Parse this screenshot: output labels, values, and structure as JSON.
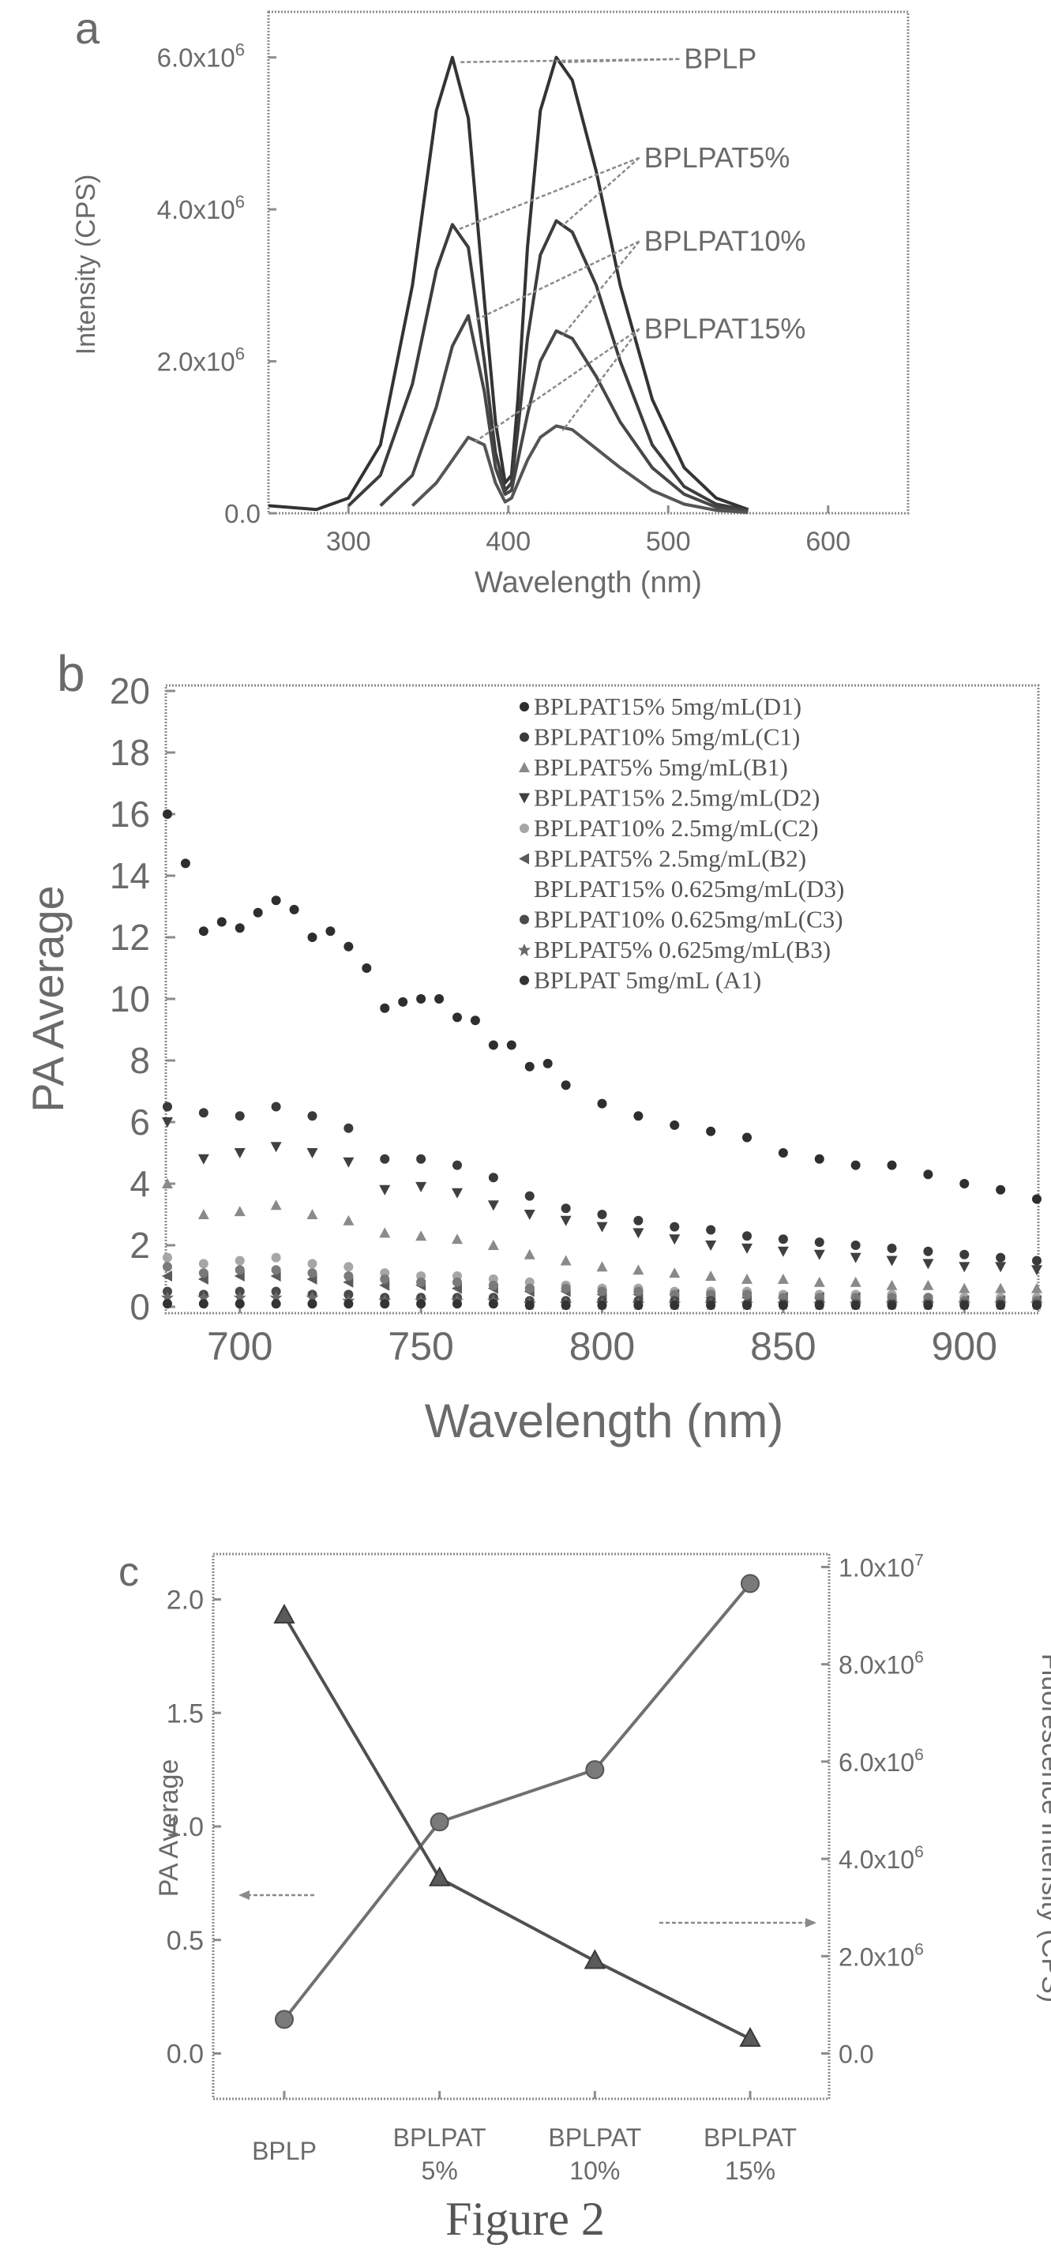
{
  "chart_data": [
    {
      "panel": "a",
      "type": "line",
      "xlabel": "Wavelength (nm)",
      "ylabel": "Intensity (CPS)",
      "xlim": [
        250,
        650
      ],
      "ylim": [
        0,
        6600000
      ],
      "x_ticks": [
        {
          "v": 300,
          "t": "300"
        },
        {
          "v": 400,
          "t": "400"
        },
        {
          "v": 500,
          "t": "500"
        },
        {
          "v": 600,
          "t": "600"
        }
      ],
      "y_ticks": [
        {
          "v": 0,
          "t": "0.0"
        },
        {
          "v": 2000000,
          "t": "2.0x10"
        },
        {
          "v": 4000000,
          "t": "4.0x10"
        },
        {
          "v": 6000000,
          "t": "6.0x10"
        }
      ],
      "y_exp": "6",
      "annotations": [
        {
          "text": "BPLP",
          "name": "label-bplp",
          "tx": 500,
          "ty": 6000000
        },
        {
          "text": "BPLPAT5%",
          "name": "label-bplpat5",
          "tx": 475,
          "ty": 4700000
        },
        {
          "text": "BPLPAT10%",
          "name": "label-bplpat10",
          "tx": 475,
          "ty": 3600000
        },
        {
          "text": "BPLPAT15%",
          "name": "label-bplpat15",
          "tx": 475,
          "ty": 2450000
        }
      ],
      "series": [
        {
          "name": "BPLP",
          "x": [
            250,
            280,
            300,
            320,
            340,
            355,
            365,
            375,
            385,
            392,
            398,
            402,
            406,
            412,
            420,
            430,
            440,
            455,
            470,
            490,
            510,
            530,
            550
          ],
          "values": [
            100000,
            50000,
            200000,
            900000,
            3000000,
            5300000,
            6000000,
            5200000,
            2800000,
            1200000,
            400000,
            500000,
            1500000,
            3500000,
            5300000,
            6000000,
            5700000,
            4500000,
            3000000,
            1500000,
            600000,
            200000,
            50000
          ]
        },
        {
          "name": "BPLPAT5%",
          "x": [
            300,
            320,
            340,
            355,
            365,
            375,
            385,
            392,
            398,
            402,
            406,
            412,
            420,
            430,
            440,
            455,
            470,
            490,
            510,
            530,
            550
          ],
          "values": [
            100000,
            500000,
            1700000,
            3200000,
            3800000,
            3500000,
            2000000,
            800000,
            300000,
            400000,
            1100000,
            2300000,
            3400000,
            3850000,
            3700000,
            3000000,
            2000000,
            900000,
            350000,
            120000,
            40000
          ]
        },
        {
          "name": "BPLPAT10%",
          "x": [
            320,
            340,
            355,
            365,
            375,
            385,
            392,
            398,
            402,
            406,
            412,
            420,
            430,
            440,
            455,
            470,
            490,
            510,
            530,
            550
          ],
          "values": [
            100000,
            500000,
            1400000,
            2200000,
            2600000,
            1600000,
            600000,
            250000,
            300000,
            700000,
            1300000,
            2000000,
            2400000,
            2300000,
            1800000,
            1200000,
            600000,
            250000,
            80000,
            30000
          ]
        },
        {
          "name": "BPLPAT15%",
          "x": [
            340,
            355,
            365,
            375,
            385,
            392,
            398,
            402,
            406,
            412,
            420,
            430,
            440,
            455,
            470,
            490,
            510,
            530,
            550
          ],
          "values": [
            100000,
            400000,
            700000,
            1000000,
            900000,
            400000,
            150000,
            200000,
            400000,
            700000,
            1000000,
            1150000,
            1100000,
            850000,
            600000,
            300000,
            120000,
            40000,
            10000
          ]
        }
      ]
    },
    {
      "panel": "b",
      "type": "scatter",
      "xlabel": "Wavelength (nm)",
      "ylabel": "PA Average",
      "xlim": [
        680,
        920
      ],
      "ylim": [
        0,
        20
      ],
      "x_ticks": [
        {
          "v": 700,
          "t": "700"
        },
        {
          "v": 750,
          "t": "750"
        },
        {
          "v": 800,
          "t": "800"
        },
        {
          "v": 850,
          "t": "850"
        },
        {
          "v": 900,
          "t": "900"
        }
      ],
      "y_ticks": [
        {
          "v": 0,
          "t": "0"
        },
        {
          "v": 2,
          "t": "2"
        },
        {
          "v": 4,
          "t": "4"
        },
        {
          "v": 6,
          "t": "6"
        },
        {
          "v": 8,
          "t": "8"
        },
        {
          "v": 10,
          "t": "10"
        },
        {
          "v": 12,
          "t": "12"
        },
        {
          "v": 14,
          "t": "14"
        },
        {
          "v": 16,
          "t": "16"
        },
        {
          "v": 18,
          "t": "18"
        },
        {
          "v": 20,
          "t": "20"
        }
      ],
      "legend": "top-right",
      "series": [
        {
          "name": "BPLPAT15% 5mg/mL(D1)",
          "x": [
            680,
            685,
            690,
            695,
            700,
            705,
            710,
            715,
            720,
            725,
            730,
            735,
            740,
            745,
            750,
            755,
            760,
            765,
            770,
            775,
            780,
            785,
            790,
            800,
            810,
            820,
            830,
            840,
            850,
            860,
            870,
            880,
            890,
            900,
            910,
            920
          ],
          "values": [
            16,
            14.4,
            12.2,
            12.5,
            12.3,
            12.8,
            13.2,
            12.9,
            12.0,
            12.2,
            11.7,
            11.0,
            9.7,
            9.9,
            10.0,
            10.0,
            9.4,
            9.3,
            8.5,
            8.5,
            7.8,
            7.9,
            7.2,
            6.6,
            6.2,
            5.9,
            5.7,
            5.5,
            5.0,
            4.8,
            4.6,
            4.6,
            4.3,
            4.0,
            3.8,
            3.5
          ]
        },
        {
          "name": "BPLPAT10% 5mg/mL(C1)",
          "x": [
            680,
            690,
            700,
            710,
            720,
            730,
            740,
            750,
            760,
            770,
            780,
            790,
            800,
            810,
            820,
            830,
            840,
            850,
            860,
            870,
            880,
            890,
            900,
            910,
            920
          ],
          "values": [
            6.5,
            6.3,
            6.2,
            6.5,
            6.2,
            5.8,
            4.8,
            4.8,
            4.6,
            4.2,
            3.6,
            3.2,
            3.0,
            2.8,
            2.6,
            2.5,
            2.3,
            2.2,
            2.1,
            2.0,
            1.9,
            1.8,
            1.7,
            1.6,
            1.5
          ]
        },
        {
          "name": "BPLPAT5% 5mg/mL(B1)",
          "x": [
            680,
            690,
            700,
            710,
            720,
            730,
            740,
            750,
            760,
            770,
            780,
            790,
            800,
            810,
            820,
            830,
            840,
            850,
            860,
            870,
            880,
            890,
            900,
            910,
            920
          ],
          "values": [
            4.0,
            3.0,
            3.1,
            3.3,
            3.0,
            2.8,
            2.4,
            2.3,
            2.2,
            2.0,
            1.7,
            1.5,
            1.3,
            1.2,
            1.1,
            1.0,
            0.9,
            0.9,
            0.8,
            0.8,
            0.7,
            0.7,
            0.6,
            0.6,
            0.6
          ]
        },
        {
          "name": "BPLPAT15% 2.5mg/mL(D2)",
          "x": [
            680,
            690,
            700,
            710,
            720,
            730,
            740,
            750,
            760,
            770,
            780,
            790,
            800,
            810,
            820,
            830,
            840,
            850,
            860,
            870,
            880,
            890,
            900,
            910,
            920
          ],
          "values": [
            6.0,
            4.8,
            5.0,
            5.2,
            5.0,
            4.7,
            3.8,
            3.9,
            3.7,
            3.3,
            3.0,
            2.8,
            2.6,
            2.4,
            2.2,
            2.0,
            1.9,
            1.8,
            1.7,
            1.6,
            1.5,
            1.4,
            1.3,
            1.3,
            1.2
          ]
        },
        {
          "name": "BPLPAT10% 2.5mg/mL(C2)",
          "x": [
            680,
            690,
            700,
            710,
            720,
            730,
            740,
            750,
            760,
            770,
            780,
            790,
            800,
            810,
            820,
            830,
            840,
            850,
            860,
            870,
            880,
            890,
            900,
            910,
            920
          ],
          "values": [
            1.6,
            1.4,
            1.5,
            1.6,
            1.4,
            1.3,
            1.1,
            1.0,
            1.0,
            0.9,
            0.8,
            0.7,
            0.6,
            0.6,
            0.5,
            0.5,
            0.5,
            0.4,
            0.4,
            0.4,
            0.4,
            0.3,
            0.3,
            0.3,
            0.3
          ]
        },
        {
          "name": "BPLPAT5% 2.5mg/mL(B2)",
          "x": [
            680,
            690,
            700,
            710,
            720,
            730,
            740,
            750,
            760,
            770,
            780,
            790,
            800,
            810,
            820,
            830,
            840,
            850,
            860,
            870,
            880,
            890,
            900,
            910,
            920
          ],
          "values": [
            1.0,
            0.9,
            1.0,
            1.0,
            0.9,
            0.8,
            0.7,
            0.7,
            0.6,
            0.6,
            0.5,
            0.5,
            0.4,
            0.4,
            0.4,
            0.3,
            0.3,
            0.3,
            0.3,
            0.3,
            0.2,
            0.2,
            0.2,
            0.2,
            0.2
          ]
        },
        {
          "name": "BPLPAT15% 0.625mg/mL(D3)",
          "x": [
            680,
            690,
            700,
            710,
            720,
            730,
            740,
            750,
            760,
            770,
            780,
            790,
            800,
            810,
            820,
            830,
            840,
            850,
            860,
            870,
            880,
            890,
            900,
            910,
            920
          ],
          "values": [
            1.3,
            1.1,
            1.2,
            1.2,
            1.1,
            1.0,
            0.9,
            0.8,
            0.8,
            0.7,
            0.6,
            0.6,
            0.5,
            0.5,
            0.4,
            0.4,
            0.4,
            0.3,
            0.3,
            0.3,
            0.3,
            0.3,
            0.2,
            0.2,
            0.2
          ]
        },
        {
          "name": "BPLPAT10% 0.625mg/mL(C3)",
          "x": [
            680,
            690,
            700,
            710,
            720,
            730,
            740,
            750,
            760,
            770,
            780,
            790,
            800,
            810,
            820,
            830,
            840,
            850,
            860,
            870,
            880,
            890,
            900,
            910,
            920
          ],
          "values": [
            0.5,
            0.4,
            0.5,
            0.5,
            0.4,
            0.4,
            0.3,
            0.3,
            0.3,
            0.3,
            0.2,
            0.2,
            0.2,
            0.2,
            0.2,
            0.2,
            0.1,
            0.1,
            0.1,
            0.1,
            0.1,
            0.1,
            0.1,
            0.1,
            0.1
          ]
        },
        {
          "name": "BPLPAT5% 0.625mg/mL(B3)",
          "x": [
            680,
            690,
            700,
            710,
            720,
            730,
            740,
            750,
            760,
            770,
            780,
            790,
            800,
            810,
            820,
            830,
            840,
            850,
            860,
            870,
            880,
            890,
            900,
            910,
            920
          ],
          "values": [
            0.3,
            0.3,
            0.3,
            0.3,
            0.3,
            0.2,
            0.2,
            0.2,
            0.2,
            0.2,
            0.1,
            0.1,
            0.1,
            0.1,
            0.1,
            0.1,
            0.1,
            0.1,
            0.1,
            0.1,
            0.1,
            0.1,
            0.1,
            0.1,
            0.1
          ]
        },
        {
          "name": "BPLPAT 5mg/mL (A1)",
          "x": [
            680,
            690,
            700,
            710,
            720,
            730,
            740,
            750,
            760,
            770,
            780,
            790,
            800,
            810,
            820,
            830,
            840,
            850,
            860,
            870,
            880,
            890,
            900,
            910,
            920
          ],
          "values": [
            0.1,
            0.1,
            0.1,
            0.1,
            0.1,
            0.1,
            0.1,
            0.1,
            0.1,
            0.1,
            0.05,
            0.05,
            0.05,
            0.05,
            0.05,
            0.05,
            0.05,
            0.05,
            0.05,
            0.05,
            0.05,
            0.05,
            0.05,
            0.05,
            0.05
          ]
        }
      ]
    },
    {
      "panel": "c",
      "type": "line",
      "categories": [
        "BPLP",
        "BPLPAT 5%",
        "BPLPAT 10%",
        "BPLPAT 15%"
      ],
      "category_lines": [
        [
          "BPLP"
        ],
        [
          "BPLPAT",
          "5%"
        ],
        [
          "BPLPAT",
          "10%"
        ],
        [
          "BPLPAT",
          "15%"
        ]
      ],
      "ylabel": "PA Average",
      "y2label": "Fluorescence Intensity (CPS)",
      "ylim": [
        -0.2,
        2.2
      ],
      "y2lim": [
        -933333,
        10266667
      ],
      "y_ticks": [
        {
          "v": 0,
          "t": "0.0"
        },
        {
          "v": 0.5,
          "t": "0.5"
        },
        {
          "v": 1.0,
          "t": "1.0"
        },
        {
          "v": 1.5,
          "t": "1.5"
        },
        {
          "v": 2.0,
          "t": "2.0"
        }
      ],
      "y2_ticks": [
        {
          "v": 0,
          "t": "0.0",
          "e": ""
        },
        {
          "v": 2000000,
          "t": "2.0x10",
          "e": "6"
        },
        {
          "v": 4000000,
          "t": "4.0x10",
          "e": "6"
        },
        {
          "v": 6000000,
          "t": "6.0x10",
          "e": "6"
        },
        {
          "v": 8000000,
          "t": "8.0x10",
          "e": "6"
        },
        {
          "v": 10000000,
          "t": "1.0x10",
          "e": "7"
        }
      ],
      "series": [
        {
          "name": "PA Average",
          "axis": "left",
          "values": [
            0.15,
            1.02,
            1.25,
            2.07
          ]
        },
        {
          "name": "Fluorescence Intensity",
          "axis": "right",
          "values": [
            9000000,
            3600000,
            1900000,
            300000
          ]
        }
      ]
    }
  ],
  "panel_labels": {
    "a": "a",
    "b": "b",
    "c": "c"
  },
  "caption": "Figure 2"
}
